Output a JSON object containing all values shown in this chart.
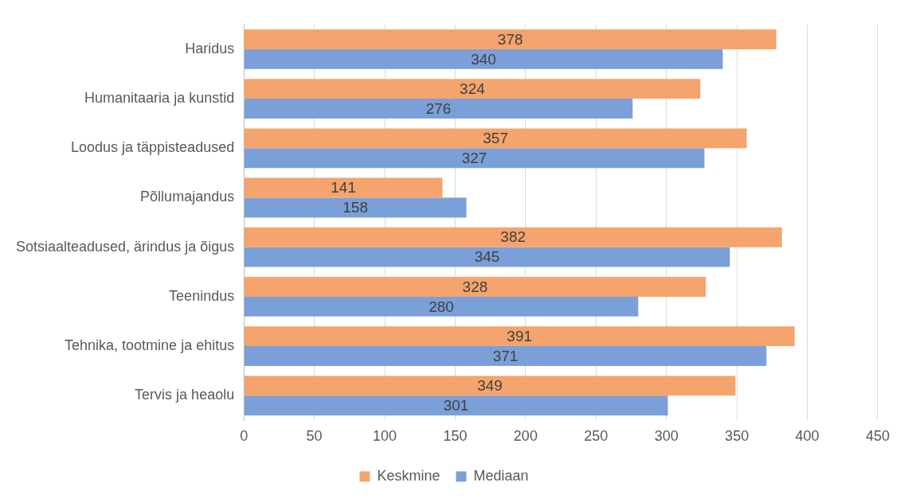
{
  "chart_data": {
    "type": "bar",
    "orientation": "horizontal",
    "categories": [
      "Haridus",
      "Humanitaaria ja kunstid",
      "Loodus ja täppisteadused",
      "Põllumajandus",
      "Sotsiaalteadused, ärindus ja õigus",
      "Teenindus",
      "Tehnika, tootmine ja ehitus",
      "Tervis ja heaolu"
    ],
    "series": [
      {
        "name": "Keskmine",
        "color": "#f4a46c",
        "values": [
          378,
          324,
          357,
          141,
          382,
          328,
          391,
          349
        ]
      },
      {
        "name": "Mediaan",
        "color": "#7b9fd8",
        "values": [
          340,
          276,
          327,
          158,
          345,
          280,
          371,
          301
        ]
      }
    ],
    "xlim": [
      0,
      450
    ],
    "xticks": [
      0,
      50,
      100,
      150,
      200,
      250,
      300,
      350,
      400,
      450
    ],
    "grid": "x",
    "legend": "bottom",
    "data_labels": true
  }
}
